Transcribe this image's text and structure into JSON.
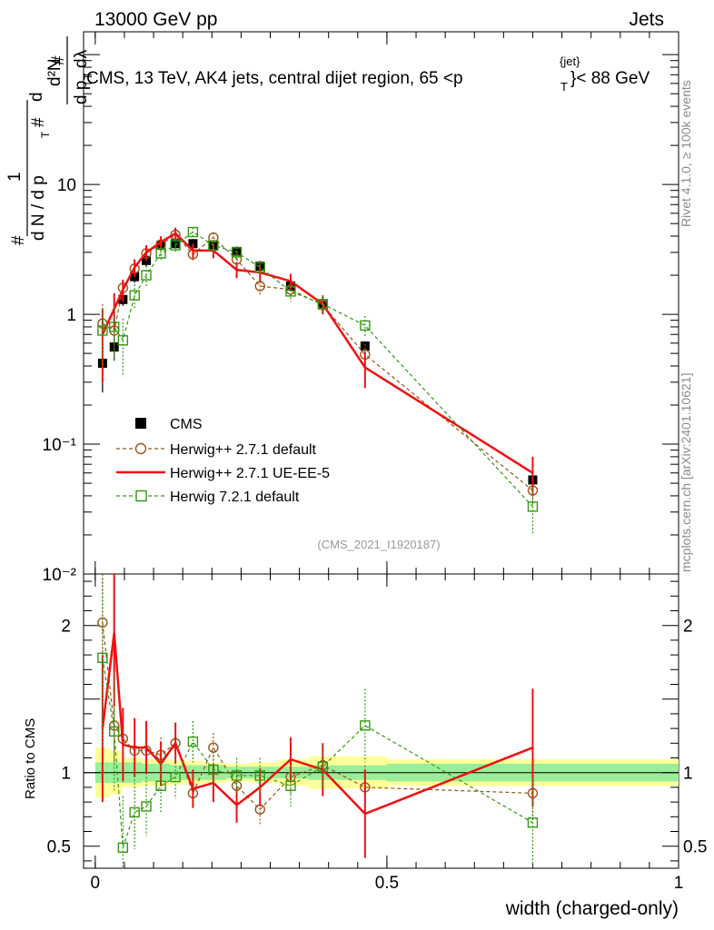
{
  "header": {
    "left": "13000 GeV pp",
    "right": "Jets"
  },
  "chart_data": {
    "type": "scatter",
    "title": "CMS, 13 TeV, AK4 jets, central dijet region, 65 <p",
    "title_sup": "{jet}",
    "title_sub": "T",
    "title_end": "}< 88 GeV",
    "analysis": "(CMS_2021_I1920187)",
    "side_top": "Rivet 4.1.0, ≥ 100k events",
    "side_bottom": "mcplots.cern.ch [arXiv:2401.10621]",
    "xlabel": "width (charged-only)",
    "ylabel_main": "# 1 / dN/dp_T d²N/(dp_T dλ)",
    "ylabel_ratio": "Ratio to CMS",
    "xlim": [
      -0.02,
      1.0
    ],
    "ylim_main_log": [
      0.01,
      150
    ],
    "ylim_ratio": [
      0.35,
      2.35
    ],
    "x_ticks": [
      0,
      0.5,
      1
    ],
    "x_tick_labels": [
      "0",
      "0.5",
      "1"
    ],
    "y_ticks_main": [
      0.01,
      0.1,
      1,
      10
    ],
    "y_tick_labels_main": [
      "10⁻²",
      "10⁻¹",
      "1",
      "10"
    ],
    "y_ticks_ratio": [
      0.5,
      1,
      2
    ],
    "y_tick_labels_ratio": [
      "0.5",
      "1",
      "2"
    ],
    "bins": [
      0.0,
      0.025,
      0.045,
      0.06,
      0.08,
      0.105,
      0.13,
      0.155,
      0.185,
      0.225,
      0.265,
      0.315,
      0.365,
      0.42,
      0.5,
      1.0
    ],
    "x": [
      0.0125,
      0.0325,
      0.0475,
      0.0675,
      0.0875,
      0.1125,
      0.1375,
      0.1675,
      0.2025,
      0.2425,
      0.2825,
      0.335,
      0.39,
      0.4625,
      0.75
    ],
    "series": [
      {
        "name": "CMS",
        "color": "#000000",
        "values": [
          0.42,
          0.56,
          1.3,
          1.95,
          2.6,
          3.4,
          3.5,
          3.5,
          3.35,
          3.05,
          2.35,
          1.65,
          1.18,
          0.57,
          0.053
        ],
        "errors": [
          0.17,
          0.12,
          0.14,
          0.2,
          0.25,
          0.3,
          0.3,
          0.3,
          0.3,
          0.28,
          0.2,
          0.14,
          0.1,
          0.05,
          0.005
        ],
        "ratio_band_inner": [
          0.07,
          0.07,
          0.07,
          0.07,
          0.06,
          0.06,
          0.05,
          0.05,
          0.05,
          0.04,
          0.04,
          0.04,
          0.05,
          0.05,
          0.06
        ],
        "ratio_band_outer": [
          0.17,
          0.15,
          0.1,
          0.1,
          0.09,
          0.09,
          0.08,
          0.08,
          0.07,
          0.06,
          0.07,
          0.09,
          0.11,
          0.11,
          0.09
        ]
      },
      {
        "name": "Herwig++ 2.7.1 default",
        "color": "#99541a",
        "values": [
          0.85,
          0.75,
          1.6,
          2.25,
          2.95,
          3.45,
          4.1,
          2.9,
          3.9,
          2.65,
          1.65,
          1.55,
          1.18,
          0.49,
          0.044
        ],
        "errors": [
          0.35,
          0.3,
          0.25,
          0.25,
          0.3,
          0.3,
          0.35,
          0.3,
          0.35,
          0.25,
          0.25,
          0.2,
          0.15,
          0.1,
          0.01
        ],
        "ratio": [
          2.02,
          1.32,
          1.23,
          1.15,
          1.15,
          1.12,
          1.2,
          0.86,
          1.17,
          0.91,
          0.75,
          0.97,
          1.05,
          0.9,
          0.86
        ],
        "ratio_err": [
          0.3,
          0.25,
          0.18,
          0.15,
          0.14,
          0.12,
          0.11,
          0.1,
          0.1,
          0.1,
          0.11,
          0.12,
          0.12,
          0.15,
          0.18
        ]
      },
      {
        "name": "Herwig++ 2.7.1 UE-EE-5",
        "color": "#ee1111",
        "values": [
          0.7,
          1.1,
          1.55,
          2.3,
          3.0,
          3.6,
          4.2,
          3.1,
          3.1,
          2.2,
          2.1,
          1.8,
          1.2,
          0.39,
          0.06
        ],
        "errors": [
          0.4,
          0.35,
          0.3,
          0.35,
          0.4,
          0.4,
          0.45,
          0.4,
          0.4,
          0.3,
          0.3,
          0.25,
          0.2,
          0.12,
          0.02
        ],
        "ratio": [
          1.3,
          1.95,
          1.19,
          1.17,
          1.17,
          1.06,
          1.2,
          0.89,
          0.93,
          0.78,
          0.9,
          1.09,
          1.02,
          0.72,
          1.17
        ],
        "ratio_err": [
          0.5,
          0.5,
          0.25,
          0.2,
          0.18,
          0.15,
          0.14,
          0.13,
          0.13,
          0.12,
          0.13,
          0.15,
          0.18,
          0.3,
          0.4
        ]
      },
      {
        "name": "Herwig 7.2.1 default",
        "color": "#339911",
        "values": [
          0.75,
          0.8,
          0.63,
          1.4,
          2.0,
          2.95,
          3.4,
          4.3,
          3.4,
          3.0,
          2.3,
          1.5,
          1.2,
          0.82,
          0.033
        ],
        "errors": [
          0.35,
          0.35,
          0.3,
          0.3,
          0.35,
          0.35,
          0.4,
          0.35,
          0.35,
          0.3,
          0.3,
          0.25,
          0.2,
          0.15,
          0.013
        ],
        "ratio": [
          1.78,
          1.28,
          0.49,
          0.73,
          0.77,
          0.91,
          0.97,
          1.21,
          1.02,
          0.98,
          0.98,
          0.91,
          1.04,
          1.32,
          0.66
        ],
        "ratio_err": [
          0.6,
          0.4,
          0.35,
          0.25,
          0.2,
          0.18,
          0.15,
          0.14,
          0.12,
          0.12,
          0.12,
          0.14,
          0.15,
          0.25,
          0.3
        ]
      }
    ]
  }
}
